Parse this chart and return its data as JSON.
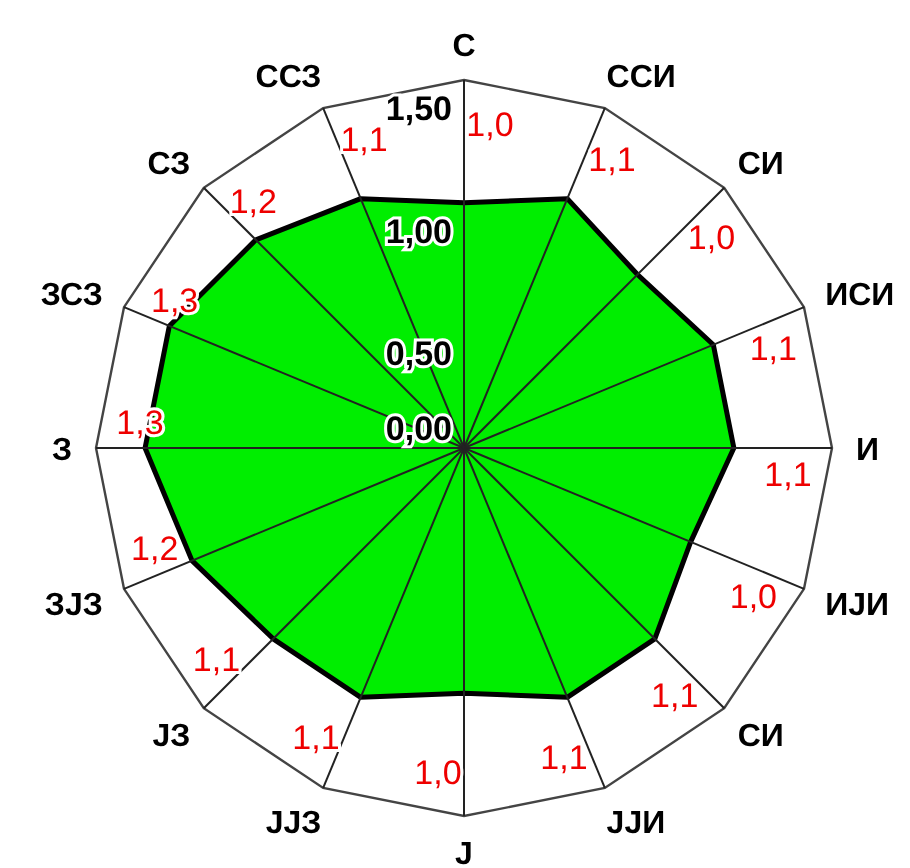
{
  "chart_data": {
    "type": "radar",
    "categories": [
      "С",
      "ССИ",
      "СИ",
      "ИСИ",
      "И",
      "ИЈИ",
      "СИ",
      "ЈЈИ",
      "Ј",
      "ЈЈЗ",
      "ЈЗ",
      "ЗЈЗ",
      "З",
      "ЗСЗ",
      "СЗ",
      "ССЗ"
    ],
    "series": [
      {
        "color": "#00ee00",
        "values": [
          1.0,
          1.1,
          1.0,
          1.1,
          1.1,
          1.0,
          1.1,
          1.1,
          1.0,
          1.1,
          1.1,
          1.2,
          1.3,
          1.3,
          1.2,
          1.1
        ],
        "value_labels": [
          "1,0",
          "1,1",
          "1,0",
          "1,1",
          "1,1",
          "1,0",
          "1,1",
          "1,1",
          "1,0",
          "1,1",
          "1,1",
          "1,2",
          "1,3",
          "1,3",
          "1,2",
          "1,1"
        ]
      }
    ],
    "ylim": [
      0,
      1.5
    ],
    "yticks": [
      {
        "value": 0,
        "label": "0,00"
      },
      {
        "value": 0.5,
        "label": "0,50"
      },
      {
        "value": 1.0,
        "label": "1,00"
      },
      {
        "value": 1.5,
        "label": "1,50"
      }
    ],
    "grid": false
  }
}
